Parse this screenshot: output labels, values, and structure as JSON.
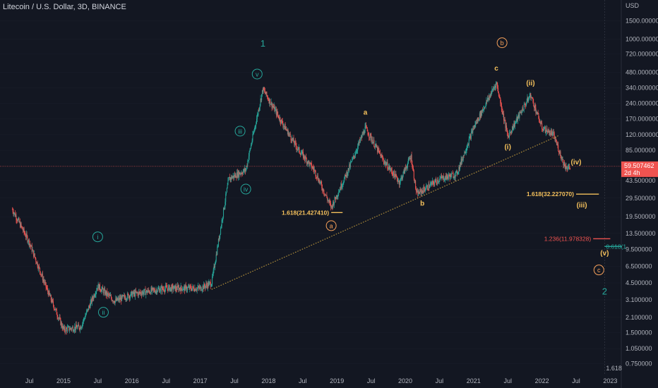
{
  "header": {
    "symbol": "Litecoin / U.S. Dollar, 3D, BINANCE",
    "currency": "USD"
  },
  "colors": {
    "bg": "#131722",
    "up": "#26a69a",
    "down": "#ef5350",
    "wave_green": "#26a69a",
    "wave_orange": "#f7a15a",
    "wave_yellow": "#f5c15c",
    "trend_line": "#d4a93f",
    "price_line": "#ef5350",
    "grid": "#2a2e39"
  },
  "chart_data": {
    "type": "candlestick",
    "y_scale": "log",
    "ylim": [
      0.6,
      2300
    ],
    "y_ticks": [
      "1500.000000",
      "1000.000000",
      "720.000000",
      "480.000000",
      "340.000000",
      "240.000000",
      "170.000000",
      "120.000000",
      "85.000000",
      "43.500000",
      "29.500000",
      "19.500000",
      "13.500000",
      "9.500000",
      "6.500000",
      "4.500000",
      "3.100000",
      "2.100000",
      "1.500000",
      "1.050000",
      "0.750000"
    ],
    "x_ticks": [
      "Jul",
      "2015",
      "Jul",
      "2016",
      "Jul",
      "2017",
      "Jul",
      "2018",
      "Jul",
      "2019",
      "Jul",
      "2020",
      "Jul",
      "2021",
      "Jul",
      "2022",
      "Jul",
      "2023"
    ],
    "price_path": [
      {
        "t": "2014-04",
        "p": 23
      },
      {
        "t": "2014-07",
        "p": 11
      },
      {
        "t": "2014-10",
        "p": 4
      },
      {
        "t": "2015-01",
        "p": 1.6
      },
      {
        "t": "2015-04",
        "p": 1.7
      },
      {
        "t": "2015-07",
        "p": 4.2
      },
      {
        "t": "2015-10",
        "p": 3.0
      },
      {
        "t": "2016-01",
        "p": 3.5
      },
      {
        "t": "2016-07",
        "p": 4.0
      },
      {
        "t": "2017-01",
        "p": 4.0
      },
      {
        "t": "2017-03",
        "p": 4.5
      },
      {
        "t": "2017-06",
        "p": 45
      },
      {
        "t": "2017-09",
        "p": 55
      },
      {
        "t": "2017-12",
        "p": 330
      },
      {
        "t": "2018-03",
        "p": 170
      },
      {
        "t": "2018-06",
        "p": 90
      },
      {
        "t": "2018-09",
        "p": 55
      },
      {
        "t": "2018-12",
        "p": 24
      },
      {
        "t": "2019-03",
        "p": 55
      },
      {
        "t": "2019-06",
        "p": 140
      },
      {
        "t": "2019-09",
        "p": 70
      },
      {
        "t": "2019-12",
        "p": 42
      },
      {
        "t": "2020-02",
        "p": 75
      },
      {
        "t": "2020-03",
        "p": 32
      },
      {
        "t": "2020-07",
        "p": 45
      },
      {
        "t": "2020-10",
        "p": 50
      },
      {
        "t": "2021-01",
        "p": 140
      },
      {
        "t": "2021-05",
        "p": 380
      },
      {
        "t": "2021-07",
        "p": 115
      },
      {
        "t": "2021-09",
        "p": 185
      },
      {
        "t": "2021-11",
        "p": 290
      },
      {
        "t": "2022-01",
        "p": 140
      },
      {
        "t": "2022-03",
        "p": 120
      },
      {
        "t": "2022-05",
        "p": 60
      },
      {
        "t": "2022-06",
        "p": 57
      }
    ],
    "trend_line": [
      {
        "t": "2017-03",
        "p": 3.9
      },
      {
        "t": "2022-04",
        "p": 118
      }
    ],
    "current_price": {
      "label": "59.507462",
      "countdown": "2d 4h",
      "p": 59.5
    },
    "fib_levels": [
      {
        "label": "1.618(21.427410)",
        "p": 21.4,
        "t0": "2018-12",
        "t1": "2019-02",
        "color": "yellow"
      },
      {
        "label": "1.618(32.227070)",
        "p": 32.2,
        "t0": "2022-07",
        "t1": "2022-11",
        "color": "yellow"
      },
      {
        "label": "1.236(11.978328)",
        "p": 11.98,
        "t0": "2022-10",
        "t1": "2023-01",
        "color": "red"
      },
      {
        "label": "0.618(1",
        "p": 10.1,
        "t0": "2022-12",
        "t1": "2023-03",
        "color": "teal"
      }
    ],
    "bottom_label": "1.618",
    "wave_labels": [
      {
        "text": "1",
        "t": "2017-12",
        "p": 900,
        "style": "plain",
        "color": "green"
      },
      {
        "text": "v",
        "t": "2017-11",
        "p": 460,
        "style": "circle",
        "color": "green"
      },
      {
        "text": "iii",
        "t": "2017-08",
        "p": 130,
        "style": "circle",
        "color": "green"
      },
      {
        "text": "iv",
        "t": "2017-09",
        "p": 36,
        "style": "circle",
        "color": "green"
      },
      {
        "text": "i",
        "t": "2015-07",
        "p": 12.5,
        "style": "circle",
        "color": "green"
      },
      {
        "text": "ii",
        "t": "2015-08",
        "p": 2.35,
        "style": "circle",
        "color": "green"
      },
      {
        "text": "a",
        "t": "2018-12",
        "p": 16,
        "style": "circle",
        "color": "orange"
      },
      {
        "text": "b",
        "t": "2021-06",
        "p": 920,
        "style": "circle",
        "color": "orange"
      },
      {
        "text": "c",
        "t": "2022-11",
        "p": 6.0,
        "style": "circle",
        "color": "orange"
      },
      {
        "text": "a",
        "t": "2019-06",
        "p": 200,
        "style": "plain",
        "color": "yellow"
      },
      {
        "text": "b",
        "t": "2020-04",
        "p": 26.5,
        "style": "plain",
        "color": "yellow"
      },
      {
        "text": "c",
        "t": "2021-05",
        "p": 530,
        "style": "plain",
        "color": "yellow"
      },
      {
        "text": "(ii)",
        "t": "2021-11",
        "p": 380,
        "style": "plain",
        "color": "yellow"
      },
      {
        "text": "(i)",
        "t": "2021-07",
        "p": 93,
        "style": "plain",
        "color": "yellow"
      },
      {
        "text": "(iv)",
        "t": "2022-07",
        "p": 66,
        "style": "plain",
        "color": "yellow"
      },
      {
        "text": "(iii)",
        "t": "2022-08",
        "p": 25.5,
        "style": "plain",
        "color": "yellow"
      },
      {
        "text": "(v)",
        "t": "2022-12",
        "p": 8.8,
        "style": "plain",
        "color": "yellow"
      },
      {
        "text": "2",
        "t": "2022-12",
        "p": 3.7,
        "style": "plain",
        "color": "green"
      }
    ]
  }
}
